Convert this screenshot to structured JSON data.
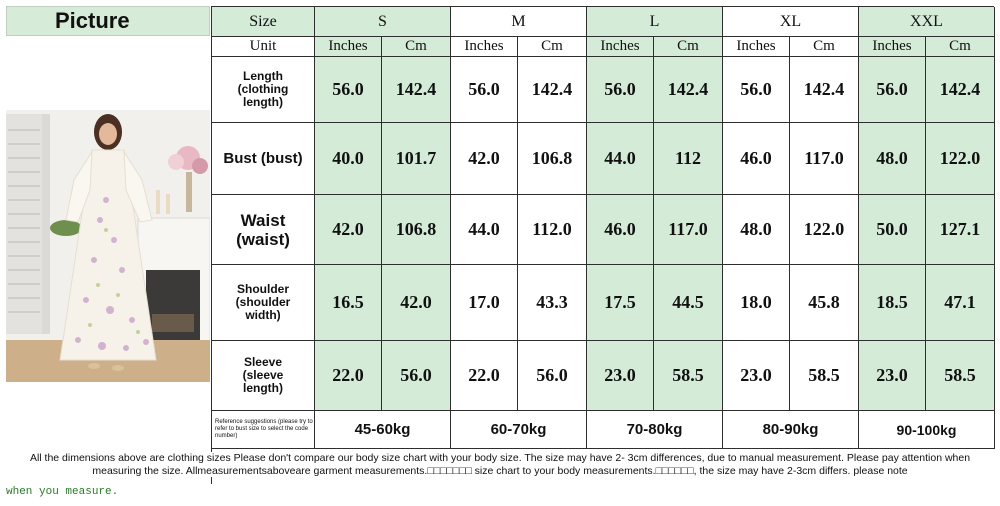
{
  "picture_label": "Picture",
  "header": {
    "size_label": "Size",
    "sizes": [
      "S",
      "M",
      "L",
      "XL",
      "XXL"
    ],
    "unit_label": "Unit",
    "units": [
      "Inches",
      "Cm"
    ]
  },
  "rows": [
    {
      "label": "Length\n(clothing\nlength)",
      "values": [
        "56.0",
        "142.4",
        "56.0",
        "142.4",
        "56.0",
        "142.4",
        "56.0",
        "142.4",
        "56.0",
        "142.4"
      ]
    },
    {
      "label": "Bust (bust)",
      "values": [
        "40.0",
        "101.7",
        "42.0",
        "106.8",
        "44.0",
        "112",
        "46.0",
        "117.0",
        "48.0",
        "122.0"
      ]
    },
    {
      "label": "Waist\n(waist)",
      "values": [
        "42.0",
        "106.8",
        "44.0",
        "112.0",
        "46.0",
        "117.0",
        "48.0",
        "122.0",
        "50.0",
        "127.1"
      ]
    },
    {
      "label": "Shoulder\n(shoulder\nwidth)",
      "values": [
        "16.5",
        "42.0",
        "17.0",
        "43.3",
        "17.5",
        "44.5",
        "18.0",
        "45.8",
        "18.5",
        "47.1"
      ]
    },
    {
      "label": "Sleeve\n(sleeve\nlength)",
      "values": [
        "22.0",
        "56.0",
        "22.0",
        "56.0",
        "23.0",
        "58.5",
        "23.0",
        "58.5",
        "23.0",
        "58.5"
      ]
    }
  ],
  "reference": {
    "label": "Reference suggestions (please try to refer to bust size to select the code number)",
    "weights": [
      "45-60kg",
      "60-70kg",
      "70-80kg",
      "80-90kg",
      "90-100kg"
    ]
  },
  "note": "All the dimensions above are clothing sizes Please don't compare our body size chart with your body size. The size may have 2- 3cm differences, due to manual measurement. Please pay attention when measuring the size. Allmeasurementsaboveare garment measurements.□□□□□□□ size chart to your body measurements.□□□□□□, the size may have 2-3cm differs. please note",
  "footer": "when you measure."
}
